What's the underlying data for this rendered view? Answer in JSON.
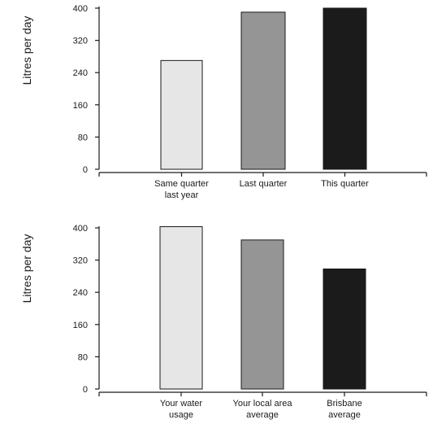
{
  "chart_data": [
    {
      "type": "bar",
      "ylabel": "Litres per day",
      "ylim": [
        0,
        400
      ],
      "yticks": [
        0,
        80,
        160,
        240,
        320,
        400
      ],
      "categories": [
        [
          "Same quarter",
          "last year"
        ],
        [
          "Last quarter"
        ],
        [
          "This quarter"
        ]
      ],
      "values": [
        270,
        390,
        400
      ],
      "colors": [
        "#e6e6e6",
        "#959595",
        "#1b1b1b"
      ]
    },
    {
      "type": "bar",
      "ylabel": "Litres per day",
      "ylim": [
        0,
        400
      ],
      "yticks": [
        0,
        80,
        160,
        240,
        320,
        400
      ],
      "categories": [
        [
          "Your water",
          "usage"
        ],
        [
          "Your local area",
          "average"
        ],
        [
          "Brisbane",
          "average"
        ]
      ],
      "values": [
        403,
        370,
        298
      ],
      "colors": [
        "#e6e6e6",
        "#959595",
        "#1b1b1b"
      ]
    }
  ]
}
